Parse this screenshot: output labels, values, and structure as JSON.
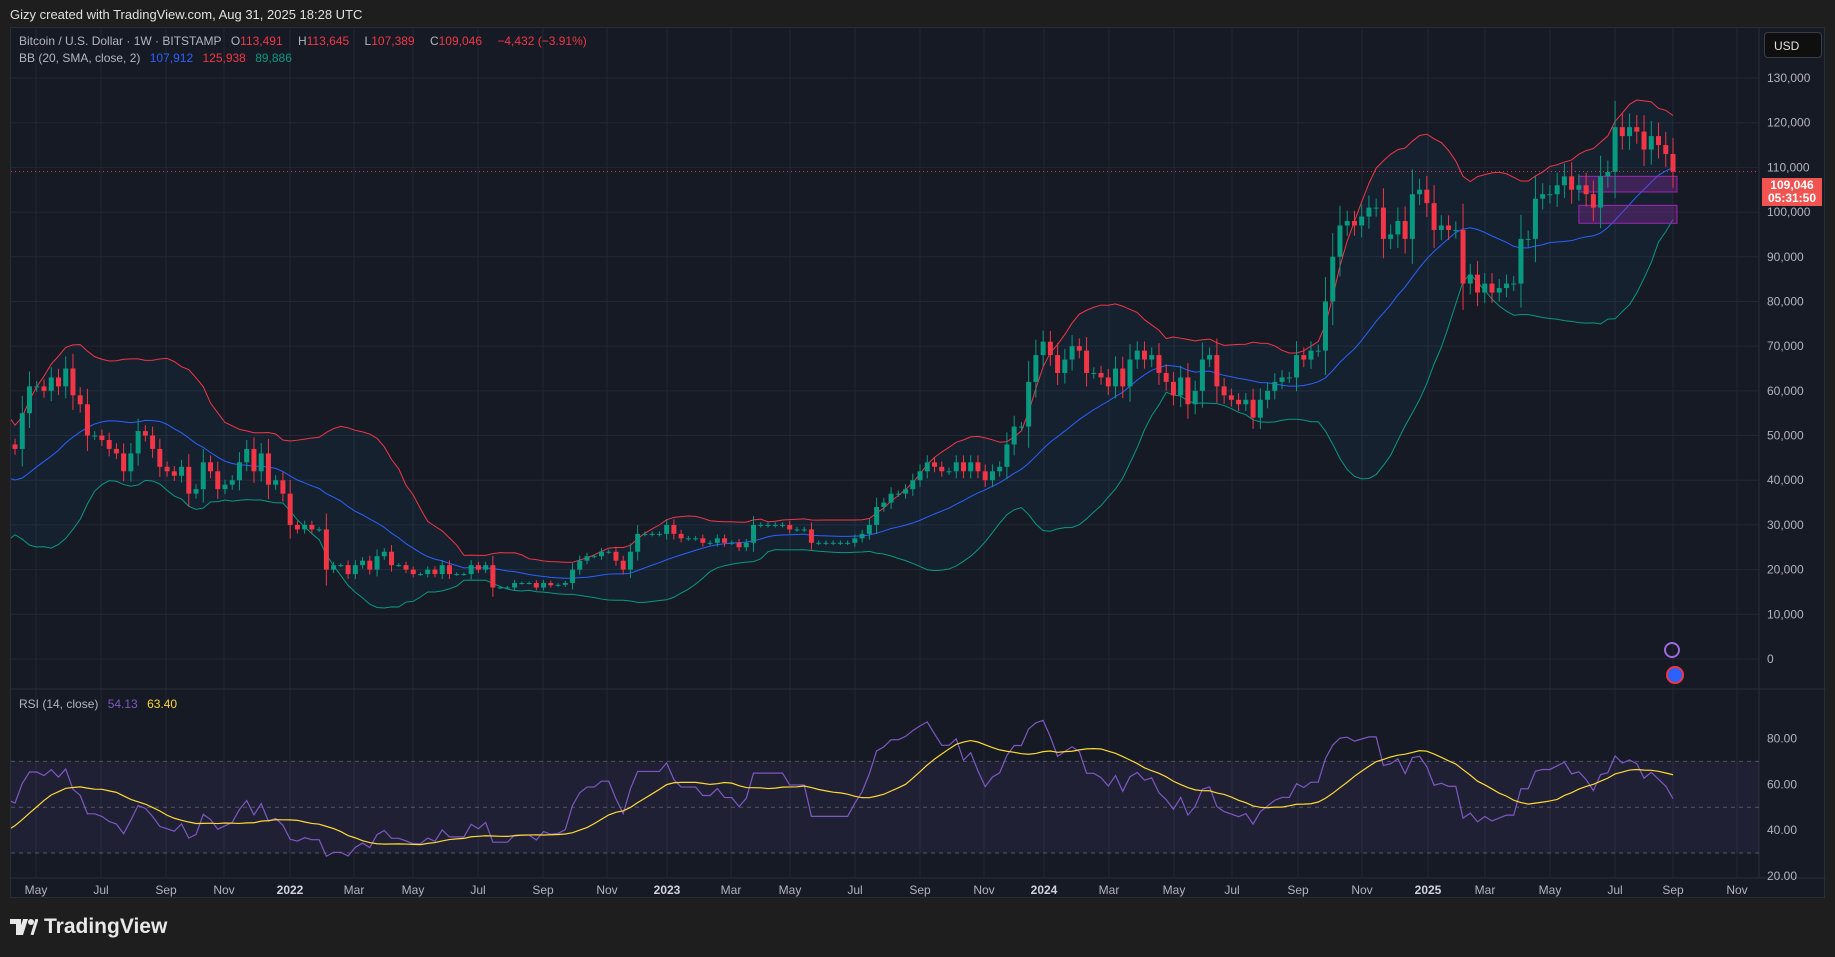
{
  "caption": "Gizy created with TradingView.com, Aug 31, 2025 18:28 UTC",
  "symbol": {
    "title": "Bitcoin / U.S. Dollar · 1W · BITSTAMP",
    "o_label": "O",
    "o": "113,491",
    "h_label": "H",
    "h": "113,645",
    "l_label": "L",
    "l": "107,389",
    "c_label": "C",
    "c": "109,046",
    "change": "−4,432 (−3.91%)"
  },
  "bb": {
    "label": "BB (20, SMA, close, 2)",
    "basis": "107,912",
    "upper": "125,938",
    "lower": "89,886"
  },
  "rsi": {
    "label": "RSI (14, close)",
    "value": "54.13",
    "ma": "63.40",
    "ticks": [
      "80.00",
      "60.00",
      "40.00",
      "20.00"
    ]
  },
  "currency": "USD",
  "last_price": "109,046",
  "countdown": "05:31:50",
  "price_ticks": [
    "130,000",
    "120,000",
    "110,000",
    "100,000",
    "90,000",
    "80,000",
    "70,000",
    "60,000",
    "50,000",
    "40,000",
    "30,000",
    "20,000",
    "10,000",
    "0"
  ],
  "time_ticks": [
    "May",
    "Jul",
    "Sep",
    "Nov",
    "2022",
    "Mar",
    "May",
    "Jul",
    "Sep",
    "Nov",
    "2023",
    "Mar",
    "May",
    "Jul",
    "Sep",
    "Nov",
    "2024",
    "Mar",
    "May",
    "Jul",
    "Sep",
    "Nov",
    "2025",
    "Mar",
    "May",
    "Jul",
    "Sep",
    "Nov"
  ],
  "footer": "TradingView",
  "colors": {
    "up": "#089981",
    "down": "#f23645",
    "bb_upper": "#f23645",
    "bb_basis": "#2962ff",
    "bb_lower": "#089981",
    "rsi": "#7e57c2",
    "rsi_ma": "#fdd835"
  },
  "chart_data": {
    "type": "candlestick",
    "interval": "1W",
    "start_week": "2021-04-05",
    "ylim": [
      0,
      130000
    ],
    "rsi_range": [
      20,
      85
    ],
    "closes": [
      60,
      56,
      49,
      58,
      57,
      46,
      37,
      35,
      36,
      39,
      35,
      32,
      33,
      34,
      30,
      34,
      40,
      42,
      47,
      46,
      49,
      48,
      43,
      48,
      47,
      55,
      61,
      61,
      60,
      63,
      61,
      65,
      59,
      57,
      50,
      50,
      49,
      47,
      46,
      42,
      46,
      51,
      50,
      47,
      43,
      42,
      41,
      43,
      37,
      38,
      44,
      42,
      38,
      39,
      40,
      44,
      47,
      42,
      46,
      39,
      40,
      37,
      30,
      29,
      30,
      29,
      29,
      20,
      21,
      21,
      19,
      21,
      22,
      20,
      23,
      24,
      21,
      21,
      20,
      19,
      19,
      20,
      19,
      21,
      19,
      19,
      19,
      21,
      20,
      21,
      16,
      16,
      16,
      17,
      17,
      17,
      16,
      17,
      16.5,
      16.6,
      17,
      20,
      22,
      23,
      23,
      24,
      24,
      22,
      20,
      24,
      28,
      28,
      28,
      28,
      30,
      28,
      27,
      27,
      27,
      26,
      26,
      27,
      26,
      26,
      25,
      26,
      30,
      30,
      30,
      30,
      30,
      29,
      29,
      29,
      26,
      26,
      26,
      26,
      26,
      26,
      27,
      28,
      30,
      34,
      35,
      37,
      37,
      38,
      40,
      42,
      44,
      43,
      42,
      42,
      44,
      42,
      44,
      42,
      40,
      42,
      43,
      48,
      52,
      52,
      62,
      68,
      71,
      68,
      64,
      67,
      70,
      69,
      64,
      64,
      63,
      61,
      65,
      61,
      67,
      69,
      67,
      68,
      64,
      62,
      59,
      63,
      57,
      60,
      67,
      68,
      61,
      59,
      58,
      57,
      58,
      54,
      58,
      60,
      62,
      63,
      63,
      68,
      67,
      69,
      69,
      80,
      90,
      97,
      98,
      97,
      99,
      101,
      101,
      94,
      95,
      98,
      94,
      104,
      105,
      102,
      96,
      97,
      96,
      96,
      84,
      86,
      82,
      84,
      82,
      83,
      84,
      84,
      94,
      94,
      103,
      104,
      104,
      106,
      108,
      105,
      106,
      104,
      101,
      108,
      109,
      119,
      117,
      119,
      118,
      114,
      117,
      115,
      113,
      109.046
    ],
    "close_unit": 1000,
    "zones": [
      [
        104500,
        108000
      ],
      [
        97500,
        101500
      ]
    ]
  }
}
